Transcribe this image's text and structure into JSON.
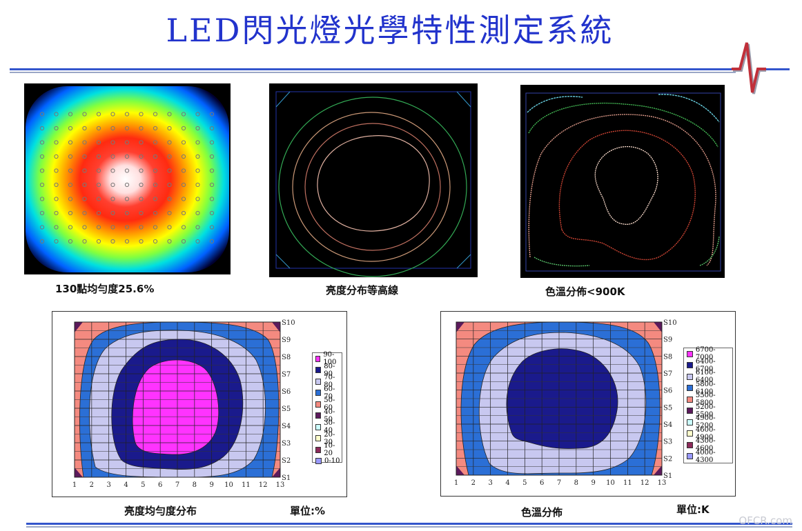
{
  "title": "LED閃光燈光學特性測定系統",
  "captions": {
    "uniformity": "130點均勻度25.6%",
    "contour": "亮度分布等高線",
    "color_temp": "色溫分佈<900K",
    "brightness_dist": "亮度均勻度分布",
    "brightness_unit": "單位:%",
    "color_dist": "色溫分佈",
    "color_unit": "單位:K"
  },
  "watermark": "OFCR.com",
  "chart_data": [
    {
      "type": "heatmap",
      "title": "",
      "x": [
        "1",
        "2",
        "3",
        "4",
        "5",
        "6",
        "7",
        "8",
        "9",
        "10",
        "11",
        "12",
        "13"
      ],
      "y": [
        "S1",
        "S2",
        "S3",
        "S4",
        "S5",
        "S6",
        "S7",
        "S8",
        "S9",
        "S10"
      ],
      "legend_position": "right",
      "legend": [
        {
          "label": "90-100",
          "color": "#ff33ff"
        },
        {
          "label": "80-90",
          "color": "#1a1a8c"
        },
        {
          "label": "70-80",
          "color": "#c8c8f0"
        },
        {
          "label": "60-70",
          "color": "#2b6fd6"
        },
        {
          "label": "50-60",
          "color": "#f48a80"
        },
        {
          "label": "40-50",
          "color": "#5c1a5c"
        },
        {
          "label": "30-40",
          "color": "#ccffff"
        },
        {
          "label": "20-30",
          "color": "#ffffcc"
        },
        {
          "label": "10-20",
          "color": "#8c2a5a"
        },
        {
          "label": "0-10",
          "color": "#9999ff"
        }
      ]
    },
    {
      "type": "heatmap",
      "title": "",
      "x": [
        "1",
        "2",
        "3",
        "4",
        "5",
        "6",
        "7",
        "8",
        "9",
        "10",
        "11",
        "12",
        "13"
      ],
      "y": [
        "S1",
        "S2",
        "S3",
        "S4",
        "S5",
        "S6",
        "S7",
        "S8",
        "S9",
        "S10"
      ],
      "legend_position": "right",
      "legend": [
        {
          "label": "6700-7000",
          "color": "#ff33ff"
        },
        {
          "label": "6400-6700",
          "color": "#1a1a8c"
        },
        {
          "label": "6100-6400",
          "color": "#c8c8f0"
        },
        {
          "label": "5800-6100",
          "color": "#2b6fd6"
        },
        {
          "label": "5500-5800",
          "color": "#f48a80"
        },
        {
          "label": "5200-5500",
          "color": "#5c1a5c"
        },
        {
          "label": "4900-5200",
          "color": "#ccffff"
        },
        {
          "label": "4600-4900",
          "color": "#ffffcc"
        },
        {
          "label": "4300-4600",
          "color": "#8c2a5a"
        },
        {
          "label": "4000-4300",
          "color": "#9999ff"
        }
      ]
    }
  ]
}
